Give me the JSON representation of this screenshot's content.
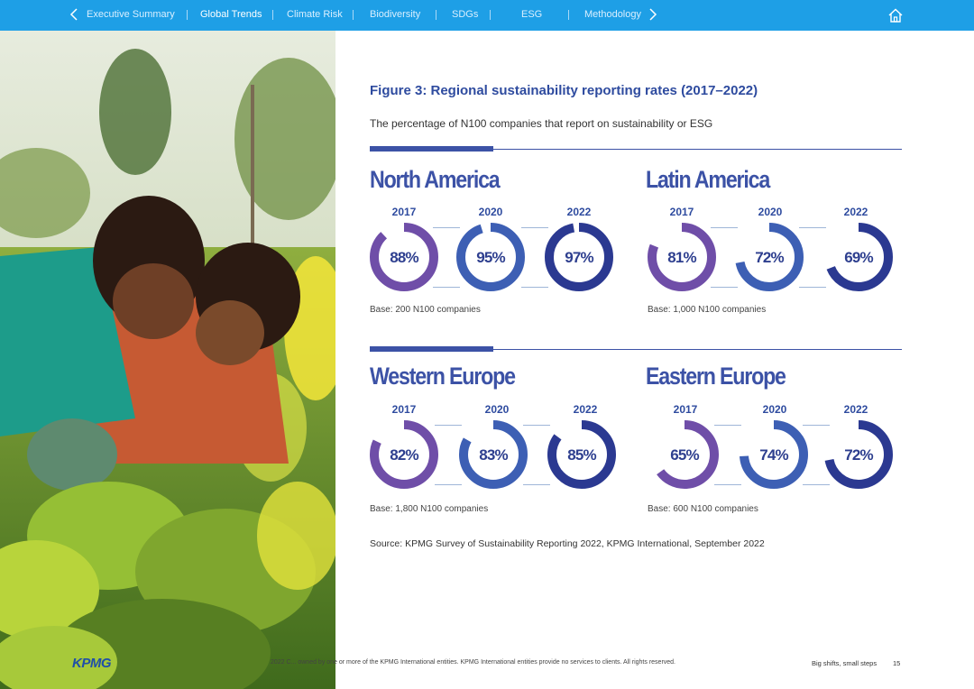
{
  "nav": {
    "items": [
      {
        "label": "Executive Summary",
        "active": false
      },
      {
        "label": "Global Trends",
        "active": true
      },
      {
        "label": "Climate Risk",
        "active": false
      },
      {
        "label": "Biodiversity",
        "active": false
      },
      {
        "label": "SDGs",
        "active": false
      },
      {
        "label": "ESG",
        "active": false
      },
      {
        "label": "Methodology",
        "active": false
      }
    ],
    "prev_icon": "chevron-left-icon",
    "next_icon": "chevron-right-icon",
    "home_icon": "home-icon"
  },
  "figure": {
    "title": "Figure 3: Regional sustainability reporting rates (2017–2022)",
    "subtitle": "The percentage of N100 companies that report on sustainability or ESG"
  },
  "chart_data": {
    "type": "donut",
    "title": "Figure 3: Regional sustainability reporting rates (2017–2022)",
    "subtitle": "The percentage of N100 companies that report on sustainability or ESG",
    "unit": "%",
    "categories": [
      "2017",
      "2020",
      "2022"
    ],
    "series_colors": [
      "#6f4ea8",
      "#3d5fb4",
      "#2b3991"
    ],
    "panels": [
      {
        "name": "North America",
        "years": [
          "2017",
          "2020",
          "2022"
        ],
        "values": [
          88,
          95,
          97
        ],
        "labels": [
          "88%",
          "95%",
          "97%"
        ],
        "base": "Base: 200 N100 companies"
      },
      {
        "name": "Latin America",
        "years": [
          "2017",
          "2020",
          "2022"
        ],
        "values": [
          81,
          72,
          69
        ],
        "labels": [
          "81%",
          "72%",
          "69%"
        ],
        "base": "Base: 1,000 N100 companies"
      },
      {
        "name": "Western Europe",
        "years": [
          "2017",
          "2020",
          "2022"
        ],
        "values": [
          82,
          83,
          85
        ],
        "labels": [
          "82%",
          "83%",
          "85%"
        ],
        "base": "Base: 1,800 N100 companies"
      },
      {
        "name": "Eastern Europe",
        "years": [
          "2017",
          "2020",
          "2022"
        ],
        "values": [
          65,
          74,
          72
        ],
        "labels": [
          "65%",
          "74%",
          "72%"
        ],
        "base": "Base: 600 N100 companies"
      }
    ],
    "source": "Source: KPMG Survey of Sustainability Reporting 2022, KPMG International, September 2022"
  },
  "footer": {
    "copyright": "2022 C... owned by one or more of the KPMG International entities. KPMG International entities provide no services to clients. All rights reserved.",
    "right_text": "Big shifts, small steps",
    "page_number": "15",
    "logo": "KPMG"
  }
}
